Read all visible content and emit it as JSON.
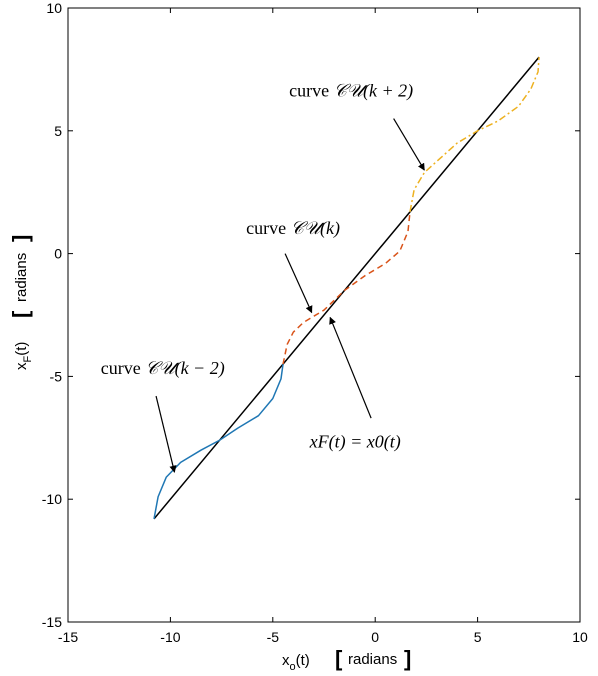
{
  "chart_data": {
    "type": "line",
    "xlim": [
      -15,
      10
    ],
    "ylim": [
      -15,
      10
    ],
    "x_ticks": [
      "-15",
      "-10",
      "-5",
      "0",
      "5",
      "10"
    ],
    "y_ticks": [
      "-15",
      "-10",
      "-5",
      "0",
      "5",
      "10"
    ],
    "xlabel": {
      "main": "x",
      "sub": "o",
      "tail": "(t)",
      "unit": "radians"
    },
    "ylabel": {
      "main": "x",
      "sub": "F",
      "tail": "(t)",
      "unit": "radians"
    },
    "grid": false,
    "series": [
      {
        "color": "#000000",
        "style": "solid",
        "x": [
          -10.8,
          8.0
        ],
        "y": [
          -10.8,
          8.0
        ]
      },
      {
        "color": "#1f77b4",
        "style": "solid",
        "x": [
          -10.8,
          -10.6,
          -10.2,
          -9.5,
          -8.5,
          -7.6,
          -6.7,
          -5.7,
          -5.0,
          -4.6,
          -4.5
        ],
        "y": [
          -10.8,
          -9.9,
          -9.1,
          -8.5,
          -8.0,
          -7.6,
          -7.1,
          -6.6,
          -5.9,
          -5.1,
          -4.5
        ]
      },
      {
        "color": "#d95319",
        "style": "dashed",
        "x": [
          -4.5,
          -4.3,
          -4.0,
          -3.5,
          -2.5,
          -1.5,
          -0.5,
          0.5,
          1.2,
          1.6,
          1.7
        ],
        "y": [
          -4.5,
          -3.7,
          -3.2,
          -2.8,
          -2.3,
          -1.5,
          -0.9,
          -0.4,
          0.1,
          0.9,
          1.7
        ]
      },
      {
        "color": "#edb120",
        "style": "dashdot",
        "x": [
          1.7,
          1.9,
          2.4,
          3.2,
          4.0,
          5.0,
          6.0,
          7.0,
          7.6,
          7.95,
          8.0
        ],
        "y": [
          1.7,
          2.6,
          3.3,
          3.9,
          4.5,
          5.0,
          5.4,
          6.0,
          6.7,
          7.4,
          8.0
        ]
      }
    ],
    "annotations": [
      {
        "prefix": "curve ",
        "math": "𝒞𝒰(k + 2)",
        "tx": -4.2,
        "ty": 6.4,
        "ax1": 0.9,
        "ay1": 5.5,
        "ax2": 2.4,
        "ay2": 3.4
      },
      {
        "prefix": "curve ",
        "math": "𝒞𝒰(k)",
        "tx": -6.3,
        "ty": 0.8,
        "ax1": -4.4,
        "ay1": 0.0,
        "ax2": -3.1,
        "ay2": -2.4
      },
      {
        "prefix": "curve ",
        "math": "𝒞𝒰(k − 2)",
        "tx": -13.4,
        "ty": -4.9,
        "ax1": -10.7,
        "ay1": -5.8,
        "ax2": -9.8,
        "ay2": -8.9
      },
      {
        "prefix": "",
        "math": "xF(t) = x0(t)",
        "tx": -3.2,
        "ty": -7.9,
        "ax1": -0.2,
        "ay1": -6.7,
        "ax2": -2.2,
        "ay2": -2.6
      }
    ]
  }
}
